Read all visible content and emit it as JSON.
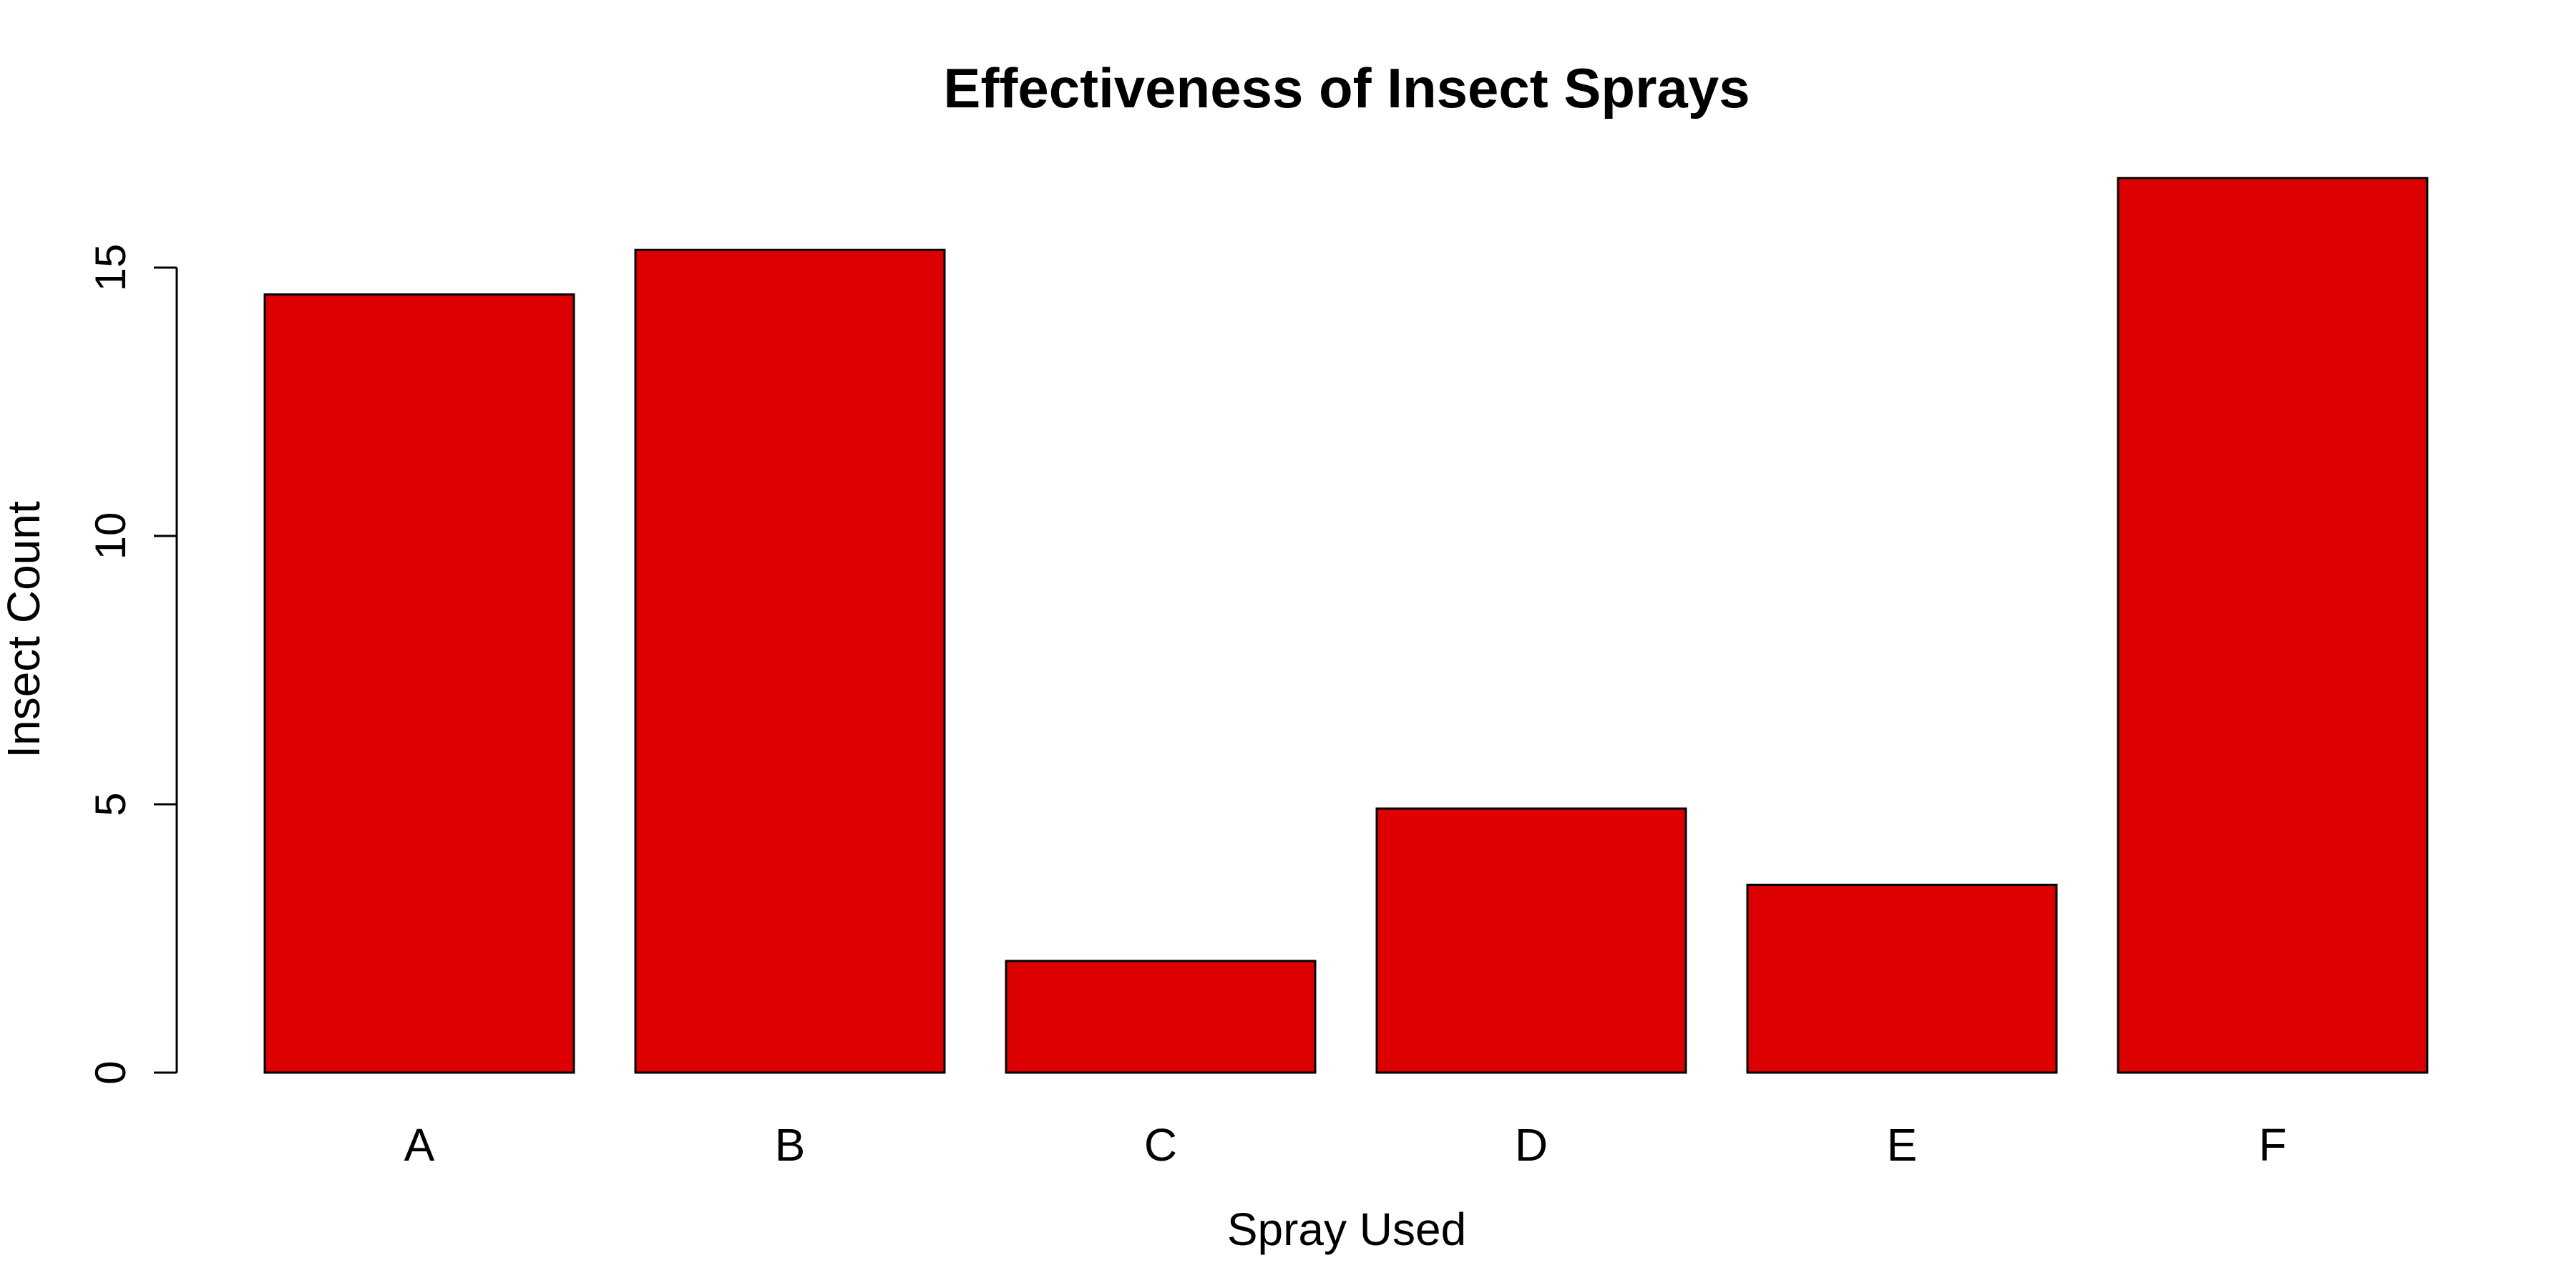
{
  "chart_data": {
    "type": "bar",
    "title": "Effectiveness of Insect Sprays",
    "xlabel": "Spray Used",
    "ylabel": "Insect Count",
    "categories": [
      "A",
      "B",
      "C",
      "D",
      "E",
      "F"
    ],
    "values": [
      14.5,
      15.33,
      2.08,
      4.92,
      3.5,
      16.67
    ],
    "ylim": [
      0,
      17.5
    ],
    "yticks": [
      0,
      5,
      10,
      15
    ],
    "grid": false,
    "legend": null,
    "bar_color": "#DD0000",
    "bar_border_color": "#000000"
  }
}
